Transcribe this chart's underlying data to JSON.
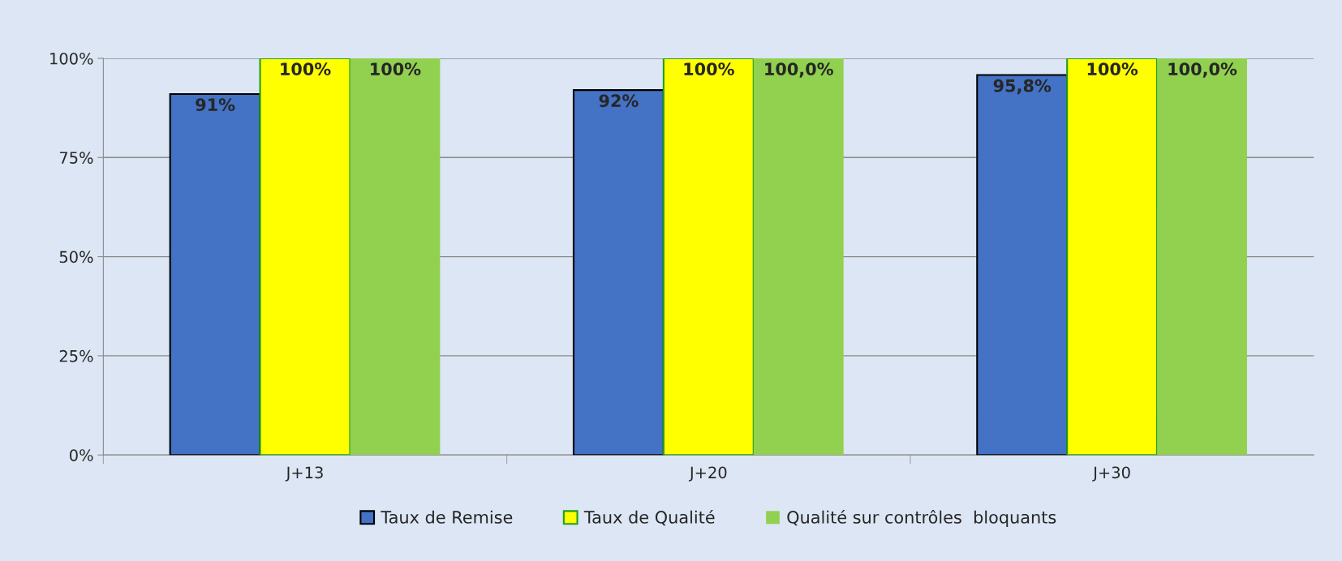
{
  "chart_data": {
    "type": "bar",
    "categories": [
      "J+13",
      "J+20",
      "J+30"
    ],
    "series": [
      {
        "name": "Taux de Remise",
        "color": "#4472c4",
        "values": [
          91,
          92,
          95.8
        ],
        "value_labels": [
          "91%",
          "92%",
          "95,8%"
        ]
      },
      {
        "name": "Taux de Qualité",
        "color": "#ffff00",
        "values": [
          100,
          100,
          100
        ],
        "value_labels": [
          "100%",
          "100%",
          "100%"
        ]
      },
      {
        "name": "Qualité sur contrôles  bloquants",
        "color": "#92d050",
        "values": [
          100,
          100,
          100
        ],
        "value_labels": [
          "100%",
          "100,0%",
          "100,0%"
        ]
      }
    ],
    "ylim": [
      0,
      100
    ],
    "yticks": [
      {
        "value": 0,
        "label": "0%"
      },
      {
        "value": 25,
        "label": "25%"
      },
      {
        "value": 50,
        "label": "50%"
      },
      {
        "value": 75,
        "label": "75%"
      },
      {
        "value": 100,
        "label": "100%"
      }
    ],
    "grid": "y",
    "legend": "bottom"
  }
}
